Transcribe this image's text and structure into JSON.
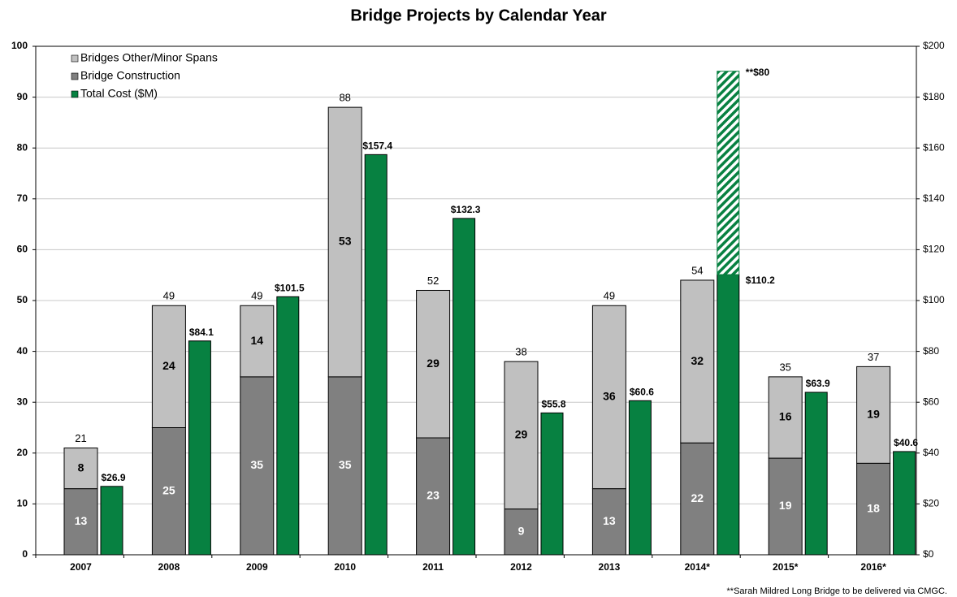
{
  "chart_data": {
    "type": "bar",
    "title": "Bridge Projects by Calendar Year",
    "categories": [
      "2007",
      "2008",
      "2009",
      "2010",
      "2011",
      "2012",
      "2013",
      "2014*",
      "2015*",
      "2016*"
    ],
    "series": [
      {
        "name": "Bridges Other/Minor Spans",
        "color": "#c0c0c0",
        "stack": "left",
        "values": [
          8,
          24,
          14,
          53,
          29,
          29,
          36,
          32,
          16,
          19
        ]
      },
      {
        "name": "Bridge Construction",
        "color": "#808080",
        "stack": "left",
        "values": [
          13,
          25,
          35,
          35,
          23,
          9,
          13,
          22,
          19,
          18
        ]
      },
      {
        "name": "Total Cost ($M)",
        "color": "#078141",
        "axis": "y2",
        "values": [
          26.9,
          84.1,
          101.5,
          157.4,
          132.3,
          55.8,
          60.6,
          110.2,
          63.9,
          40.6
        ],
        "value_labels": [
          "$26.9",
          "$84.1",
          "$101.5",
          "$157.4",
          "$132.3",
          "$55.8",
          "$60.6",
          "$110.2",
          "$63.9",
          "$40.6"
        ]
      }
    ],
    "totals": [
      21,
      49,
      49,
      88,
      52,
      38,
      49,
      54,
      35,
      37
    ],
    "extra_cost": {
      "axis": "y2",
      "values": [
        null,
        null,
        null,
        null,
        null,
        null,
        null,
        80,
        null,
        null
      ],
      "value_labels": [
        null,
        null,
        null,
        null,
        null,
        null,
        null,
        "**$80",
        null,
        null
      ]
    },
    "ylim": [
      0,
      100
    ],
    "yticks": [
      0,
      10,
      20,
      30,
      40,
      50,
      60,
      70,
      80,
      90,
      100
    ],
    "y2lim": [
      0,
      200
    ],
    "y2ticks": [
      {
        "value": 0,
        "label": "$0"
      },
      {
        "value": 20,
        "label": "$20"
      },
      {
        "value": 40,
        "label": "$40"
      },
      {
        "value": 60,
        "label": "$60"
      },
      {
        "value": 80,
        "label": "$80"
      },
      {
        "value": 100,
        "label": "$100"
      },
      {
        "value": 120,
        "label": "$120"
      },
      {
        "value": 140,
        "label": "$140"
      },
      {
        "value": 160,
        "label": "$160"
      },
      {
        "value": 180,
        "label": "$180"
      },
      {
        "value": 200,
        "label": "$200"
      }
    ],
    "grid": true,
    "legend": "upper left",
    "footnote": "**Sarah Mildred Long Bridge to be delivered via CMGC."
  }
}
